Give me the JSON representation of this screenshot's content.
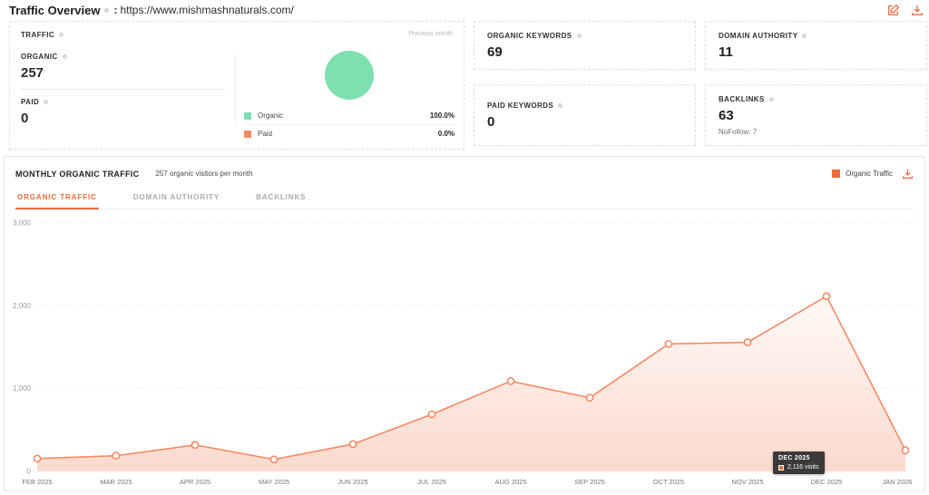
{
  "header": {
    "title": "Traffic Overview",
    "separator": ":",
    "url": "https://www.mishmashnaturals.com/"
  },
  "colors": {
    "accent_orange": "#ed6a39",
    "line_salmon": "#f58a64",
    "pie_green": "#7de0ae",
    "tooltip_bg": "#3a3a3a"
  },
  "traffic_card": {
    "title": "TRAFFIC",
    "previous_month_label": "Previous month",
    "metrics": [
      {
        "label": "ORGANIC",
        "value": "257"
      },
      {
        "label": "PAID",
        "value": "0"
      }
    ],
    "legend": [
      {
        "label": "Organic",
        "value": "100.0%",
        "color": "#7de0ae"
      },
      {
        "label": "Paid",
        "value": "0.0%",
        "color": "#f58a64"
      }
    ]
  },
  "stat_cards": [
    {
      "label": "ORGANIC KEYWORDS",
      "value": "69"
    },
    {
      "label": "DOMAIN AUTHORITY",
      "value": "11"
    },
    {
      "label": "PAID KEYWORDS",
      "value": "0"
    },
    {
      "label": "BACKLINKS",
      "value": "63",
      "sub": "NoFollow: 7"
    }
  ],
  "monthly_panel": {
    "title": "MONTHLY ORGANIC TRAFFIC",
    "subtitle": "257 organic visitors per month",
    "tabs": [
      {
        "label": "ORGANIC TRAFFIC"
      },
      {
        "label": "DOMAIN AUTHORITY"
      },
      {
        "label": "BACKLINKS"
      }
    ],
    "legend_label": "Organic Traffic",
    "tooltip": {
      "title": "DEC 2025",
      "value": "2,116 visits"
    }
  },
  "chart_data": {
    "type": "area",
    "title": "Monthly Organic Traffic",
    "x": [
      "FEB 2025",
      "MAR 2025",
      "APR 2025",
      "MAY 2025",
      "JUN 2025",
      "JUL 2025",
      "AUG 2025",
      "SEP 2025",
      "OCT 2025",
      "NOV 2025",
      "DEC 2025",
      "JAN 2026"
    ],
    "series": [
      {
        "name": "Organic Traffic",
        "values": [
          155,
          190,
          320,
          145,
          330,
          690,
          1090,
          890,
          1540,
          1560,
          2116,
          255
        ]
      }
    ],
    "ylim": [
      0,
      3000
    ],
    "yticks": [
      0,
      1000,
      2000,
      3000
    ],
    "ytick_labels": [
      "0",
      "1,000",
      "2,000",
      "3,000"
    ],
    "grid": true,
    "line_color": "#f58a64",
    "legend_position": "top-right",
    "tooltip_point_index": 10
  }
}
